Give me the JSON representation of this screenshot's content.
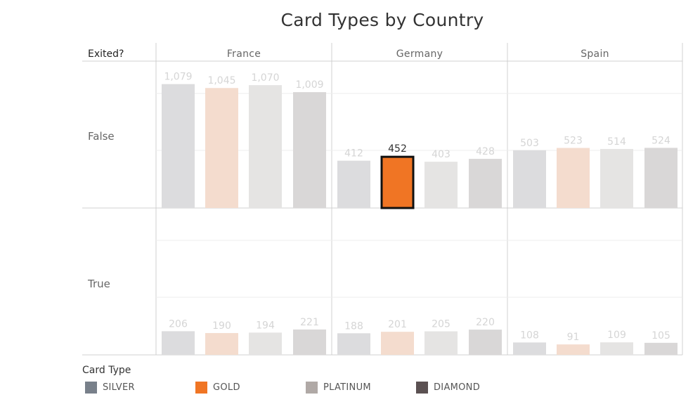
{
  "chart_data": {
    "type": "bar",
    "title": "Card Types by Country",
    "row_header": "Exited?",
    "columns": [
      "France",
      "Germany",
      "Spain"
    ],
    "rows": [
      "False",
      "True"
    ],
    "categories": [
      "SILVER",
      "GOLD",
      "PLATINUM",
      "DIAMOND"
    ],
    "values": {
      "False": {
        "France": [
          1079,
          1045,
          1070,
          1009
        ],
        "Germany": [
          412,
          452,
          403,
          428
        ],
        "Spain": [
          503,
          523,
          514,
          524
        ]
      },
      "True": {
        "France": [
          206,
          190,
          194,
          221
        ],
        "Germany": [
          188,
          201,
          205,
          220
        ],
        "Spain": [
          108,
          91,
          109,
          105
        ]
      }
    },
    "highlighted": {
      "row": "False",
      "column": "Germany",
      "category": "GOLD"
    },
    "ylim_false": [
      0,
      1150
    ],
    "ylim_true": [
      0,
      550
    ],
    "grid": true,
    "legend": {
      "title": "Card Type",
      "position": "bottom-left",
      "items": [
        {
          "label": "SILVER",
          "color": "#78808a"
        },
        {
          "label": "GOLD",
          "color": "#f07524"
        },
        {
          "label": "PLATINUM",
          "color": "#b0a9a6"
        },
        {
          "label": "DIAMOND",
          "color": "#5b5152"
        }
      ]
    },
    "faded_colors": [
      "#dcdcde",
      "#f4dcce",
      "#e5e4e3",
      "#d9d7d7"
    ]
  }
}
